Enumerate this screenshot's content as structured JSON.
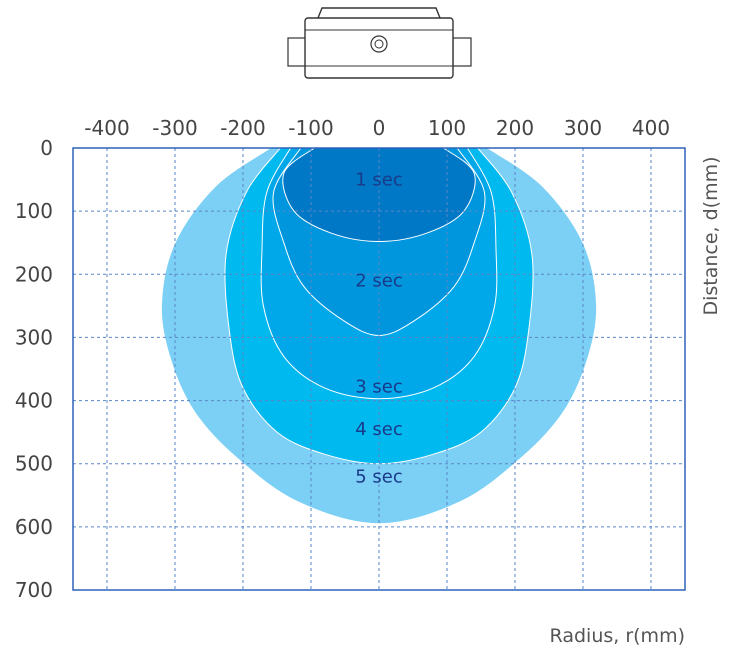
{
  "chart_data": {
    "type": "area",
    "title": "",
    "xlabel": "Radius, r(mm)",
    "ylabel": "Distance, d(mm)",
    "xlim": [
      -450,
      450
    ],
    "ylim": [
      0,
      700
    ],
    "y_inverted": true,
    "grid": true,
    "x_ticks": [
      "-400",
      "-300",
      "-200",
      "-100",
      "0",
      "100",
      "200",
      "300",
      "400"
    ],
    "y_ticks": [
      "0",
      "100",
      "200",
      "300",
      "400",
      "500",
      "600",
      "700"
    ],
    "series": [
      {
        "name": "5 sec",
        "color": "#7dd0f5",
        "label_at": [
          0,
          520
        ],
        "points": [
          [
            -160,
            0
          ],
          [
            -240,
            60
          ],
          [
            -300,
            150
          ],
          [
            -320,
            250
          ],
          [
            -305,
            340
          ],
          [
            -270,
            420
          ],
          [
            -210,
            490
          ],
          [
            -120,
            560
          ],
          [
            0,
            595
          ],
          [
            120,
            560
          ],
          [
            210,
            490
          ],
          [
            270,
            420
          ],
          [
            305,
            340
          ],
          [
            320,
            250
          ],
          [
            300,
            150
          ],
          [
            240,
            60
          ],
          [
            160,
            0
          ]
        ]
      },
      {
        "name": "4 sec",
        "color": "#00b9ef",
        "label_at": [
          0,
          445
        ],
        "points": [
          [
            -145,
            0
          ],
          [
            -195,
            70
          ],
          [
            -225,
            170
          ],
          [
            -220,
            290
          ],
          [
            -200,
            380
          ],
          [
            -150,
            450
          ],
          [
            -80,
            485
          ],
          [
            0,
            500
          ],
          [
            80,
            485
          ],
          [
            150,
            450
          ],
          [
            200,
            380
          ],
          [
            220,
            290
          ],
          [
            225,
            170
          ],
          [
            195,
            70
          ],
          [
            145,
            0
          ]
        ]
      },
      {
        "name": "3 sec",
        "color": "#00a8ea",
        "label_at": [
          0,
          378
        ],
        "points": [
          [
            -130,
            0
          ],
          [
            -165,
            70
          ],
          [
            -172,
            160
          ],
          [
            -170,
            250
          ],
          [
            -140,
            330
          ],
          [
            -80,
            380
          ],
          [
            0,
            397
          ],
          [
            80,
            380
          ],
          [
            140,
            330
          ],
          [
            170,
            250
          ],
          [
            172,
            160
          ],
          [
            165,
            70
          ],
          [
            130,
            0
          ]
        ]
      },
      {
        "name": "2 sec",
        "color": "#0096dd",
        "label_at": [
          0,
          210
        ],
        "points": [
          [
            -115,
            0
          ],
          [
            -155,
            70
          ],
          [
            -140,
            150
          ],
          [
            -110,
            220
          ],
          [
            -50,
            275
          ],
          [
            0,
            297
          ],
          [
            50,
            275
          ],
          [
            110,
            220
          ],
          [
            140,
            150
          ],
          [
            155,
            70
          ],
          [
            115,
            0
          ]
        ]
      },
      {
        "name": "1 sec",
        "color": "#0078c6",
        "label_at": [
          0,
          50
        ],
        "points": [
          [
            -95,
            0
          ],
          [
            -140,
            40
          ],
          [
            -125,
            100
          ],
          [
            -70,
            135
          ],
          [
            0,
            148
          ],
          [
            70,
            135
          ],
          [
            125,
            100
          ],
          [
            140,
            40
          ],
          [
            95,
            0
          ]
        ]
      }
    ]
  }
}
